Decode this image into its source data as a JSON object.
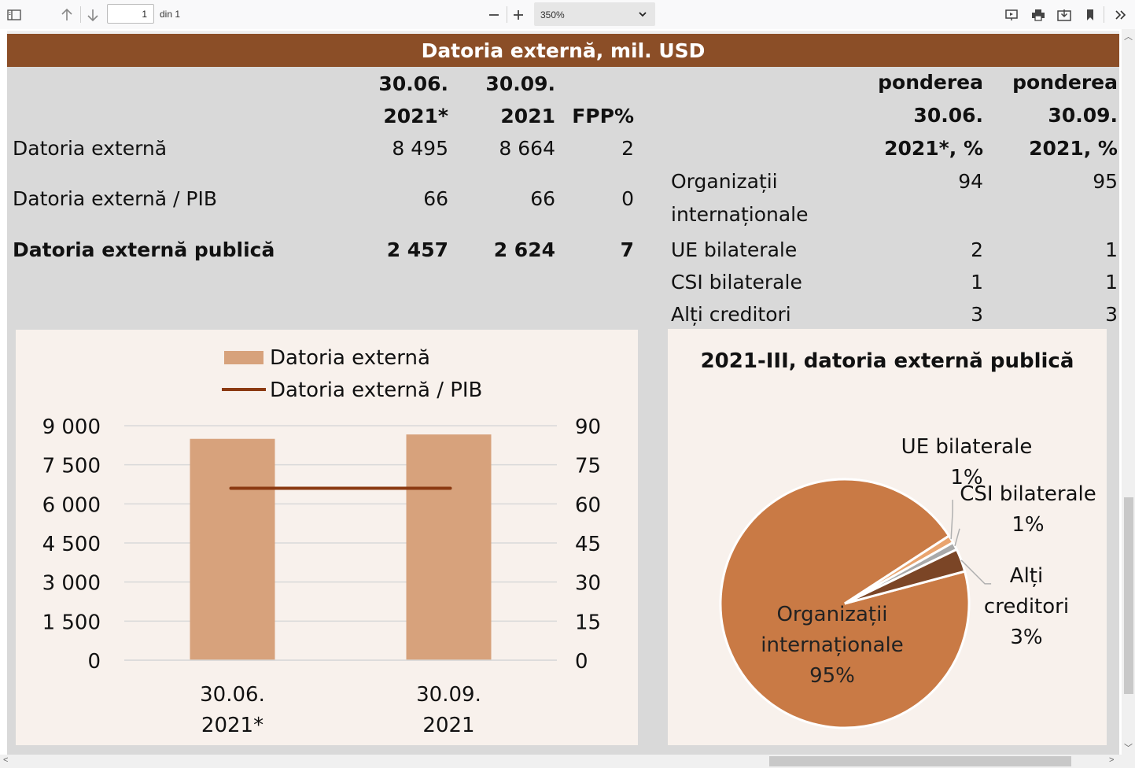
{
  "viewer": {
    "page_current": "1",
    "page_of": "din 1",
    "zoom": "350%"
  },
  "title": "Datoria externă, mil. USD",
  "table_left": {
    "headers": [
      {
        "l1": "30.06.",
        "l2": "2021*"
      },
      {
        "l1": "30.09.",
        "l2": "2021"
      },
      {
        "l1": "",
        "l2": "FPP%"
      }
    ],
    "rows": [
      {
        "label": "Datoria externă",
        "v1": "8 495",
        "v2": "8 664",
        "v3": "2"
      },
      {
        "label": "Datoria externă / PIB",
        "v1": "66",
        "v2": "66",
        "v3": "0"
      },
      {
        "label": "Datoria externă publică",
        "v1": "2 457",
        "v2": "2 624",
        "v3": "7"
      }
    ]
  },
  "table_right": {
    "headers": [
      {
        "l1": "ponderea",
        "l2": "30.06.",
        "l3": "2021*, %"
      },
      {
        "l1": "ponderea",
        "l2": "30.09.",
        "l3": "2021, %"
      }
    ],
    "rows": [
      {
        "label1": "Organizații",
        "label2": "internaționale",
        "v1": "94",
        "v2": "95"
      },
      {
        "label1": "UE bilaterale",
        "label2": "",
        "v1": "2",
        "v2": "1"
      },
      {
        "label1": "CSI bilaterale",
        "label2": "",
        "v1": "1",
        "v2": "1"
      },
      {
        "label1": "Alți creditori",
        "label2": "",
        "v1": "3",
        "v2": "3"
      }
    ]
  },
  "chart_data": [
    {
      "type": "bar",
      "categories": [
        "30.06.\n2021*",
        "30.09.\n2021"
      ],
      "category_lines": [
        [
          "30.06.",
          "2021*"
        ],
        [
          "30.09.",
          "2021"
        ]
      ],
      "series": [
        {
          "name": "Datoria externă",
          "type": "bar",
          "axis": "left",
          "values": [
            8495,
            8664
          ],
          "color": "#d7a27c"
        },
        {
          "name": "Datoria externă / PIB",
          "type": "line",
          "axis": "right",
          "values": [
            66,
            66
          ],
          "color": "#8b3a12"
        }
      ],
      "ylim": [
        0,
        9000
      ],
      "y_ticks": [
        "0",
        "1 500",
        "3 000",
        "4 500",
        "6 000",
        "7 500",
        "9 000"
      ],
      "y2lim": [
        0,
        90
      ],
      "y2_ticks": [
        "0",
        "15",
        "30",
        "45",
        "60",
        "75",
        "90"
      ],
      "grid": true,
      "legend": "top"
    },
    {
      "type": "pie",
      "title": "2021-III, datoria externă publică",
      "slices": [
        {
          "label": "Organizații internaționale",
          "label_lines": [
            "Organizații",
            "internaționale",
            "95%"
          ],
          "value": 95,
          "color": "#c97a45"
        },
        {
          "label": "UE bilaterale",
          "label_lines": [
            "UE bilaterale",
            "1%"
          ],
          "value": 1,
          "color": "#e9a46f"
        },
        {
          "label": "CSI bilaterale",
          "label_lines": [
            "CSI bilaterale",
            "1%"
          ],
          "value": 1,
          "color": "#a9a9a9"
        },
        {
          "label": "Alți creditori",
          "label_lines": [
            "Alți",
            "creditori",
            "3%"
          ],
          "value": 3,
          "color": "#7b4526"
        }
      ]
    }
  ]
}
